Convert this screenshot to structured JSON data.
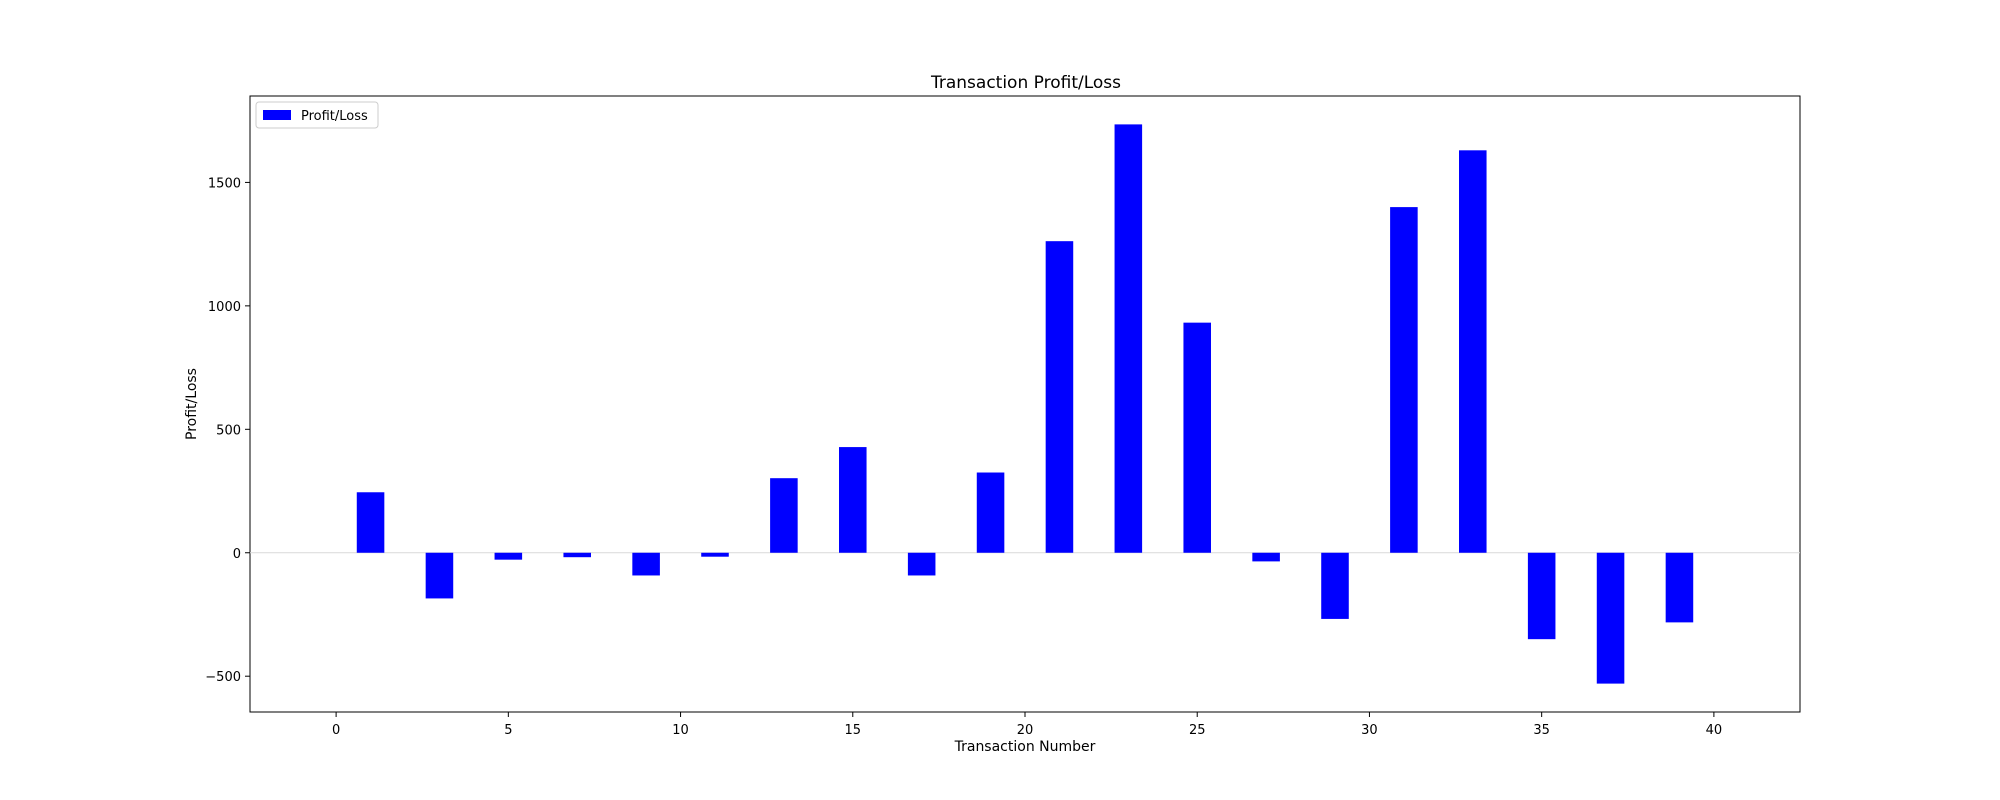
{
  "chart_data": {
    "type": "bar",
    "title": "Transaction Profit/Loss",
    "xlabel": "Transaction Number",
    "ylabel": "Profit/Loss",
    "x": [
      1,
      3,
      5,
      7,
      9,
      11,
      13,
      15,
      17,
      19,
      21,
      23,
      25,
      27,
      29,
      31,
      33,
      35,
      37,
      39
    ],
    "series": [
      {
        "name": "Profit/Loss",
        "color": "#0000ff",
        "values": [
          245,
          -185,
          -28,
          -18,
          -92,
          -16,
          302,
          428,
          -92,
          325,
          1262,
          1735,
          932,
          -35,
          -268,
          1400,
          1630,
          -350,
          -530,
          -282
        ]
      }
    ],
    "bar_width": 0.8,
    "xlim": [
      -2.5,
      42.5
    ],
    "ylim": [
      -645,
      1850
    ],
    "xticks": [
      0,
      5,
      10,
      15,
      20,
      25,
      30,
      35,
      40
    ],
    "yticks": [
      -500,
      0,
      500,
      1000,
      1500
    ],
    "zero_line": true,
    "legend_position": "top-left",
    "grid": false
  }
}
